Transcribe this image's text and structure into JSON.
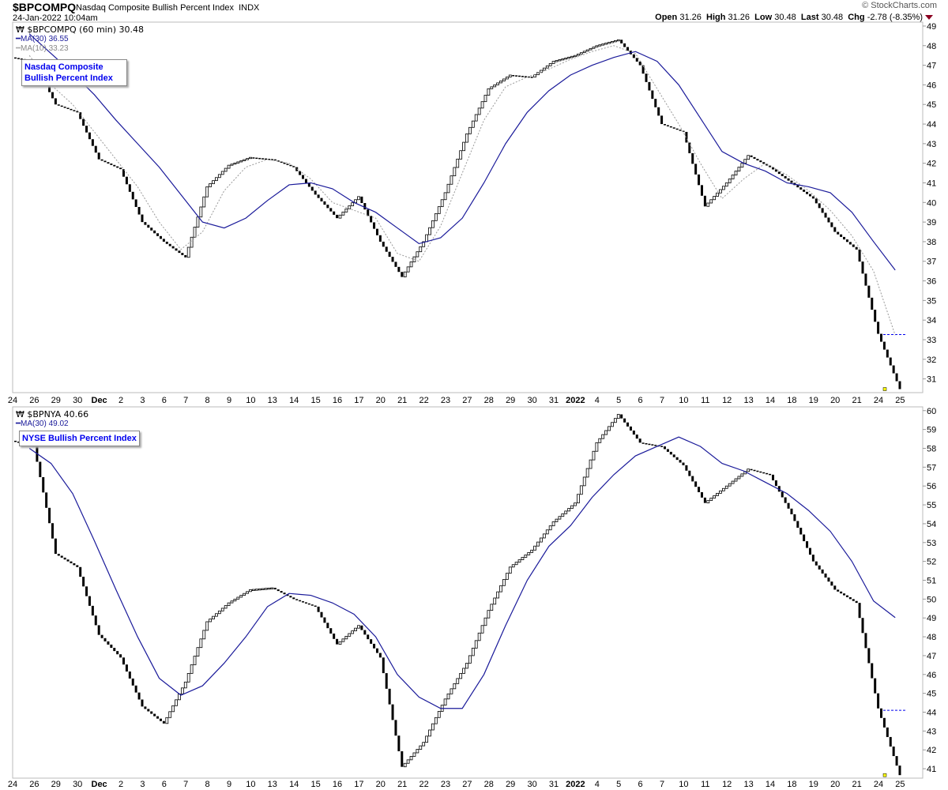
{
  "header": {
    "symbol": "$BPCOMPQ",
    "description": "Nasdaq Composite Bullish Percent Index",
    "exchange": "INDX",
    "datetime": "24-Jan-2022 10:04am",
    "brand": "© StockCharts.com",
    "open_label": "Open",
    "open": "31.26",
    "high_label": "High",
    "high": "31.26",
    "low_label": "Low",
    "low": "30.48",
    "last_label": "Last",
    "last": "30.48",
    "chg_label": "Chg",
    "chg": "-2.78 (-8.35%)"
  },
  "colors": {
    "ma30": "#1a1a9a",
    "ma10": "#999999",
    "down": "#000000",
    "up": "#ffffff",
    "last_marker": "#ffff00",
    "prev_close_line": "#0000ee",
    "chg_arrow": "#8b0020"
  },
  "x_axis_labels": [
    "24",
    "26",
    "29",
    "30",
    "Dec",
    "2",
    "3",
    "6",
    "7",
    "8",
    "9",
    "10",
    "13",
    "14",
    "15",
    "16",
    "17",
    "20",
    "21",
    "22",
    "23",
    "27",
    "28",
    "29",
    "30",
    "31",
    "2022",
    "4",
    "5",
    "6",
    "7",
    "10",
    "11",
    "12",
    "13",
    "14",
    "18",
    "19",
    "20",
    "21",
    "24",
    "25"
  ],
  "chart_data": [
    {
      "type": "line",
      "interval": "60 min",
      "legend": {
        "price": "$BPCOMPQ (60 min) 30.48",
        "ma30": "MA(30) 36.55",
        "ma10": "MA(10) 33.23"
      },
      "annotation": "Nasdaq Composite Bullish Percent Index",
      "ylim": [
        30.3,
        49.2
      ],
      "yticks": [
        31,
        32,
        33,
        34,
        35,
        36,
        37,
        38,
        39,
        40,
        41,
        42,
        43,
        44,
        45,
        46,
        47,
        48,
        49
      ],
      "prev_close": 33.26,
      "closes": [
        47.2,
        45.0,
        44.6,
        42.2,
        41.7,
        39.0,
        38.0,
        37.2,
        40.8,
        41.9,
        42.3,
        42.2,
        41.8,
        40.4,
        39.2,
        40.3,
        38.0,
        36.2,
        38.0,
        40.5,
        43.5,
        45.8,
        46.5,
        46.4,
        47.2,
        47.5,
        48.0,
        48.3,
        47.0,
        44.0,
        43.6,
        39.8,
        41.0,
        42.4,
        41.8,
        41.0,
        40.2,
        38.5,
        37.6,
        33.3,
        30.48
      ],
      "ma10": [
        47.5,
        46.0,
        45.0,
        43.6,
        42.2,
        40.8,
        39.0,
        37.6,
        38.5,
        40.6,
        41.8,
        42.2,
        42.0,
        41.2,
        40.0,
        39.6,
        39.2,
        37.4,
        37.0,
        38.8,
        41.5,
        44.2,
        45.9,
        46.4,
        46.8,
        47.3,
        47.7,
        48.0,
        47.6,
        45.8,
        44.0,
        42.0,
        40.2,
        41.2,
        42.0,
        41.4,
        40.6,
        39.6,
        38.3,
        36.5,
        33.23
      ],
      "ma30": [
        48.6,
        47.6,
        46.6,
        45.5,
        44.2,
        43.0,
        41.8,
        40.4,
        39.0,
        38.7,
        39.2,
        40.1,
        40.9,
        41.0,
        40.7,
        40.0,
        39.5,
        38.7,
        37.9,
        38.2,
        39.2,
        41.0,
        43.0,
        44.6,
        45.7,
        46.5,
        47.0,
        47.4,
        47.7,
        47.2,
        46.0,
        44.3,
        42.6,
        42.0,
        41.6,
        41.0,
        40.8,
        40.5,
        39.5,
        38.0,
        36.55
      ]
    },
    {
      "type": "line",
      "interval": "60 min",
      "legend": {
        "price": "$BPNYA 40.66",
        "ma30": "MA(30) 49.02"
      },
      "annotation": "NYSE Bullish Percent Index",
      "ylim": [
        40.5,
        60.2
      ],
      "yticks": [
        41,
        42,
        43,
        44,
        45,
        46,
        47,
        48,
        49,
        50,
        51,
        52,
        53,
        54,
        55,
        56,
        57,
        58,
        59,
        60
      ],
      "prev_close": 44.1,
      "closes": [
        58.1,
        52.4,
        51.7,
        48.1,
        46.9,
        44.3,
        43.4,
        45.6,
        48.8,
        49.8,
        50.5,
        50.6,
        50.0,
        49.6,
        47.6,
        48.6,
        46.9,
        41.1,
        42.4,
        44.7,
        46.6,
        49.4,
        51.7,
        52.6,
        54.1,
        55.1,
        58.3,
        59.8,
        58.3,
        58.1,
        57.1,
        55.1,
        56.0,
        56.9,
        56.6,
        54.5,
        52.0,
        50.5,
        49.8,
        44.2,
        40.66
      ],
      "ma30": [
        58.0,
        57.2,
        55.6,
        53.1,
        50.5,
        48.0,
        45.8,
        44.9,
        45.4,
        46.6,
        48.0,
        49.6,
        50.3,
        50.2,
        49.8,
        49.2,
        48.0,
        46.0,
        44.8,
        44.2,
        44.2,
        46.0,
        48.6,
        51.0,
        52.8,
        53.9,
        55.4,
        56.6,
        57.6,
        58.1,
        58.6,
        58.1,
        57.2,
        56.8,
        56.2,
        55.6,
        54.7,
        53.6,
        52.0,
        49.9,
        49.02
      ]
    }
  ]
}
